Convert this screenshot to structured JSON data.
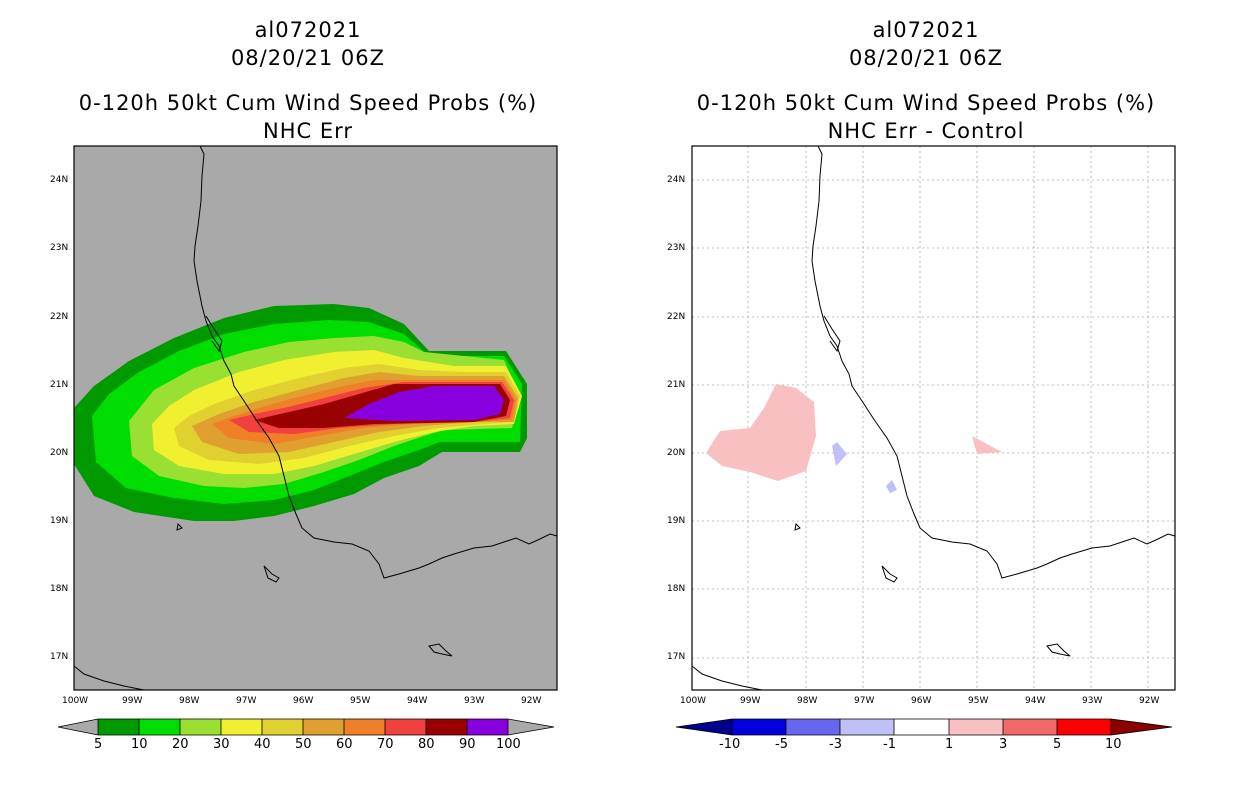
{
  "left_panel": {
    "title": [
      "al072021",
      "08/20/21 06Z",
      "0-120h 50kt Cum Wind Speed Probs (%)",
      "NHC Err"
    ],
    "lat_labels": [
      "24N",
      "23N",
      "22N",
      "21N",
      "20N",
      "19N",
      "18N",
      "17N"
    ],
    "lon_labels": [
      "100W",
      "99W",
      "98W",
      "97W",
      "96W",
      "95W",
      "94W",
      "93W",
      "92W"
    ],
    "colorbar": {
      "colors": [
        "#009900",
        "#00dd00",
        "#99e033",
        "#f0f030",
        "#e0d030",
        "#e0a030",
        "#f08028",
        "#f04040",
        "#990000",
        "#8800dd"
      ],
      "labels": [
        "5",
        "10",
        "20",
        "30",
        "40",
        "50",
        "60",
        "70",
        "80",
        "90",
        "100"
      ]
    },
    "background_color": "#a9a9a9"
  },
  "right_panel": {
    "title": [
      "al072021",
      "08/20/21 06Z",
      "0-120h 50kt Cum Wind Speed Probs (%)",
      "NHC Err - Control"
    ],
    "lat_labels": [
      "24N",
      "23N",
      "22N",
      "21N",
      "20N",
      "19N",
      "18N",
      "17N"
    ],
    "lon_labels": [
      "100W",
      "99W",
      "98W",
      "97W",
      "96W",
      "95W",
      "94W",
      "93W",
      "92W"
    ],
    "colorbar": {
      "colors": [
        "#0000dd",
        "#6666ee",
        "#c0c0f8",
        "#ffffff",
        "#f8c0c0",
        "#f06868",
        "#ff0000"
      ],
      "left_arrow": "#00008b",
      "right_arrow": "#8b0000",
      "labels": [
        "-10",
        "-5",
        "-3",
        "-1",
        "1",
        "3",
        "5",
        "10"
      ]
    }
  }
}
